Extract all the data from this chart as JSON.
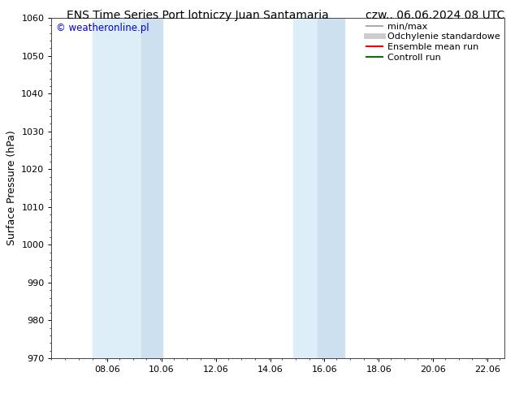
{
  "title_left": "ENS Time Series Port lotniczy Juan Santamaria",
  "title_right": "czw.. 06.06.2024 08 UTC",
  "ylabel": "Surface Pressure (hPa)",
  "watermark": "© weatheronline.pl",
  "watermark_color": "#0000dd",
  "ylim": [
    970,
    1060
  ],
  "yticks": [
    970,
    980,
    990,
    1000,
    1010,
    1020,
    1030,
    1040,
    1050,
    1060
  ],
  "xlim_start": 6.0,
  "xlim_end": 22.7,
  "xticks": [
    8.06,
    10.06,
    12.06,
    14.06,
    16.06,
    18.06,
    20.06,
    22.06
  ],
  "xtick_labels": [
    "08.06",
    "10.06",
    "12.06",
    "14.06",
    "16.06",
    "18.06",
    "20.06",
    "22.06"
  ],
  "bg_color": "#ffffff",
  "plot_bg_color": "#ffffff",
  "shaded_bands": [
    {
      "x_start": 7.5,
      "x_end": 9.3,
      "color": "#ddeef8"
    },
    {
      "x_start": 9.3,
      "x_end": 10.1,
      "color": "#cce0f0"
    },
    {
      "x_start": 14.9,
      "x_end": 15.8,
      "color": "#ddeef8"
    },
    {
      "x_start": 15.8,
      "x_end": 16.8,
      "color": "#cce0f0"
    }
  ],
  "legend_entries": [
    {
      "label": "min/max",
      "color": "#aaaaaa",
      "lw": 1.5,
      "thick": false
    },
    {
      "label": "Odchylenie standardowe",
      "color": "#cccccc",
      "lw": 5,
      "thick": true
    },
    {
      "label": "Ensemble mean run",
      "color": "#ff0000",
      "lw": 1.5,
      "thick": false
    },
    {
      "label": "Controll run",
      "color": "#007700",
      "lw": 1.5,
      "thick": false
    }
  ],
  "title_fontsize": 10,
  "tick_fontsize": 8,
  "legend_fontsize": 8,
  "ylabel_fontsize": 9
}
